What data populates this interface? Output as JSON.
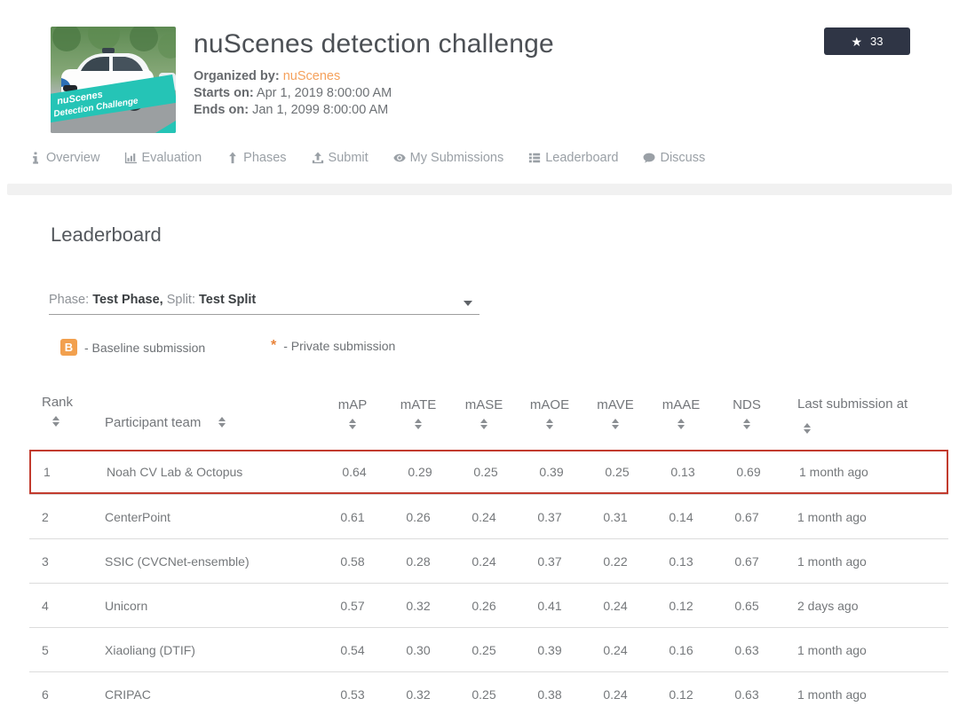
{
  "header": {
    "title": "nuScenes detection challenge",
    "organized_by_label": "Organized by:",
    "organizer": "nuScenes",
    "starts_label": "Starts on:",
    "starts_value": "Apr 1, 2019 8:00:00 AM",
    "ends_label": "Ends on:",
    "ends_value": "Jan 1, 2099 8:00:00 AM",
    "star_count": "33",
    "banner_line1": "nuScenes",
    "banner_line2": "Detection Challenge"
  },
  "nav": {
    "items": [
      {
        "label": "Overview",
        "icon": "info-icon"
      },
      {
        "label": "Evaluation",
        "icon": "bar-chart-icon"
      },
      {
        "label": "Phases",
        "icon": "arrow-up-icon"
      },
      {
        "label": "Submit",
        "icon": "upload-icon"
      },
      {
        "label": "My Submissions",
        "icon": "eye-icon"
      },
      {
        "label": "Leaderboard",
        "icon": "list-icon"
      },
      {
        "label": "Discuss",
        "icon": "comment-icon"
      }
    ]
  },
  "page": {
    "heading": "Leaderboard"
  },
  "phase_selector": {
    "phase_label": "Phase:",
    "phase_value": "Test Phase,",
    "split_label": "Split:",
    "split_value": "Test Split"
  },
  "legend": {
    "baseline_badge": "B",
    "baseline_text": "- Baseline submission",
    "private_symbol": "*",
    "private_text": "- Private submission"
  },
  "table": {
    "columns": [
      "Rank",
      "Participant team",
      "mAP",
      "mATE",
      "mASE",
      "mAOE",
      "mAVE",
      "mAAE",
      "NDS",
      "Last submission at"
    ],
    "rows": [
      {
        "rank": "1",
        "team": "Noah CV Lab & Octopus",
        "mAP": "0.64",
        "mATE": "0.29",
        "mASE": "0.25",
        "mAOE": "0.39",
        "mAVE": "0.25",
        "mAAE": "0.13",
        "NDS": "0.69",
        "last": "1 month ago",
        "highlighted": true
      },
      {
        "rank": "2",
        "team": "CenterPoint",
        "mAP": "0.61",
        "mATE": "0.26",
        "mASE": "0.24",
        "mAOE": "0.37",
        "mAVE": "0.31",
        "mAAE": "0.14",
        "NDS": "0.67",
        "last": "1 month ago",
        "highlighted": false
      },
      {
        "rank": "3",
        "team": "SSIC (CVCNet-ensemble)",
        "mAP": "0.58",
        "mATE": "0.28",
        "mASE": "0.24",
        "mAOE": "0.37",
        "mAVE": "0.22",
        "mAAE": "0.13",
        "NDS": "0.67",
        "last": "1 month ago",
        "highlighted": false
      },
      {
        "rank": "4",
        "team": "Unicorn",
        "mAP": "0.57",
        "mATE": "0.32",
        "mASE": "0.26",
        "mAOE": "0.41",
        "mAVE": "0.24",
        "mAAE": "0.12",
        "NDS": "0.65",
        "last": "2 days ago",
        "highlighted": false
      },
      {
        "rank": "5",
        "team": "Xiaoliang (DTIF)",
        "mAP": "0.54",
        "mATE": "0.30",
        "mASE": "0.25",
        "mAOE": "0.39",
        "mAVE": "0.24",
        "mAAE": "0.16",
        "NDS": "0.63",
        "last": "1 month ago",
        "highlighted": false
      },
      {
        "rank": "6",
        "team": "CRIPAC",
        "mAP": "0.53",
        "mATE": "0.32",
        "mASE": "0.25",
        "mAOE": "0.38",
        "mAVE": "0.24",
        "mAAE": "0.12",
        "NDS": "0.63",
        "last": "1 month ago",
        "highlighted": false
      }
    ]
  },
  "colors": {
    "accent_orange": "#f5a15c",
    "baseline_badge_orange": "#f2a04e",
    "banner_teal": "#25c4b6",
    "highlight_red": "#c23b2e",
    "star_button_bg": "#2f3545"
  }
}
